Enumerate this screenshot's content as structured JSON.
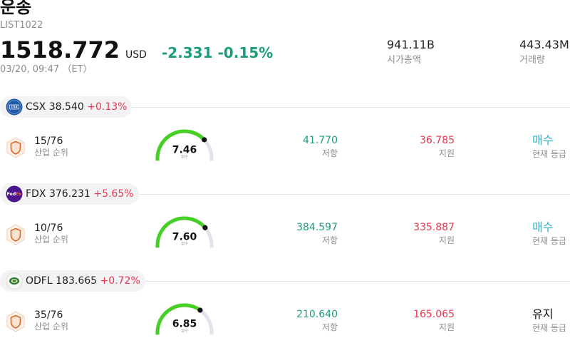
{
  "header": {
    "title": "운송",
    "code": "LIST1022",
    "price": "1518.772",
    "currency": "USD",
    "change": "-2.331",
    "change_pct": "-0.15%",
    "timestamp": "03/20, 09:47 （ET）",
    "market_cap": {
      "value": "941.11B",
      "label": "시가총액"
    },
    "volume": {
      "value": "443.43M",
      "label": "거래량"
    }
  },
  "colors": {
    "negative": "#1b9c7d",
    "positive": "#e5384f",
    "resistance": "#1b9c7d",
    "support": "#e5384f",
    "gauge_fill": "#46cf24",
    "gauge_track": "#e3e3eb",
    "gauge_indicator": "#111111"
  },
  "icons": {
    "rank": "shield-icon"
  },
  "stocks": [
    {
      "ticker": "CSX",
      "price": "38.540",
      "change_pct": "+0.13%",
      "logo": {
        "icon": "csx-logo",
        "text": "CSX"
      },
      "rank": "15/76",
      "rank_label": "산업 순위",
      "score": "7.46",
      "score_label": "점수",
      "resistance": "41.770",
      "resistance_label": "저항",
      "support": "36.785",
      "support_label": "지원",
      "grade": "매수",
      "grade_label": "현재 등급",
      "grade_color": "#2eb4c9"
    },
    {
      "ticker": "FDX",
      "price": "376.231",
      "change_pct": "+5.65%",
      "logo": {
        "icon": "fedex-logo",
        "text": "Fed",
        "text2": "Ex"
      },
      "rank": "10/76",
      "rank_label": "산업 순위",
      "score": "7.60",
      "score_label": "점수",
      "resistance": "384.597",
      "resistance_label": "저항",
      "support": "335.887",
      "support_label": "지원",
      "grade": "매수",
      "grade_label": "현재 등급",
      "grade_color": "#2eb4c9"
    },
    {
      "ticker": "ODFL",
      "price": "183.665",
      "change_pct": "+0.72%",
      "logo": {
        "icon": "odfl-logo"
      },
      "rank": "35/76",
      "rank_label": "산업 순위",
      "score": "6.85",
      "score_label": "점수",
      "resistance": "210.640",
      "resistance_label": "저항",
      "support": "165.065",
      "support_label": "지원",
      "grade": "유지",
      "grade_label": "현재 등급",
      "grade_color": "#111111"
    }
  ]
}
